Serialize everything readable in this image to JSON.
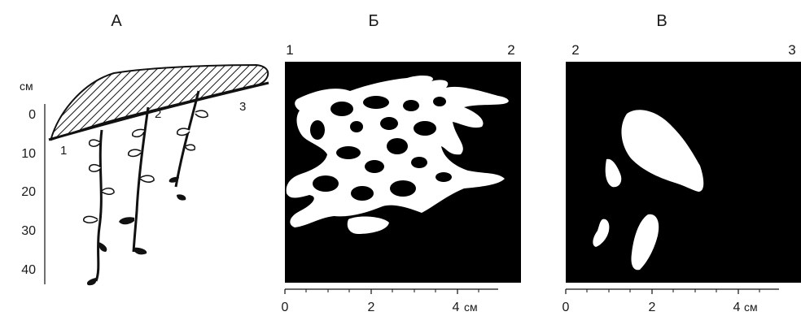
{
  "panels": {
    "a": {
      "title": "А",
      "unit": "см",
      "depth_ticks": [
        "0",
        "10",
        "20",
        "30",
        "40"
      ],
      "plant_labels": [
        "1",
        "2",
        "3"
      ]
    },
    "b": {
      "title": "Б",
      "corner_left": "1",
      "corner_right": "2",
      "x_ticks": [
        "0",
        "2",
        "4"
      ],
      "x_unit": "см"
    },
    "c": {
      "title": "В",
      "corner_left": "2",
      "corner_right": "3",
      "x_ticks": [
        "0",
        "2",
        "4"
      ],
      "x_unit": "см"
    }
  },
  "colors": {
    "ink": "#111111",
    "fill_black": "#000000",
    "paper": "#ffffff"
  },
  "icons": [
    "hatched-mound",
    "rhizome",
    "tuber",
    "bud"
  ]
}
